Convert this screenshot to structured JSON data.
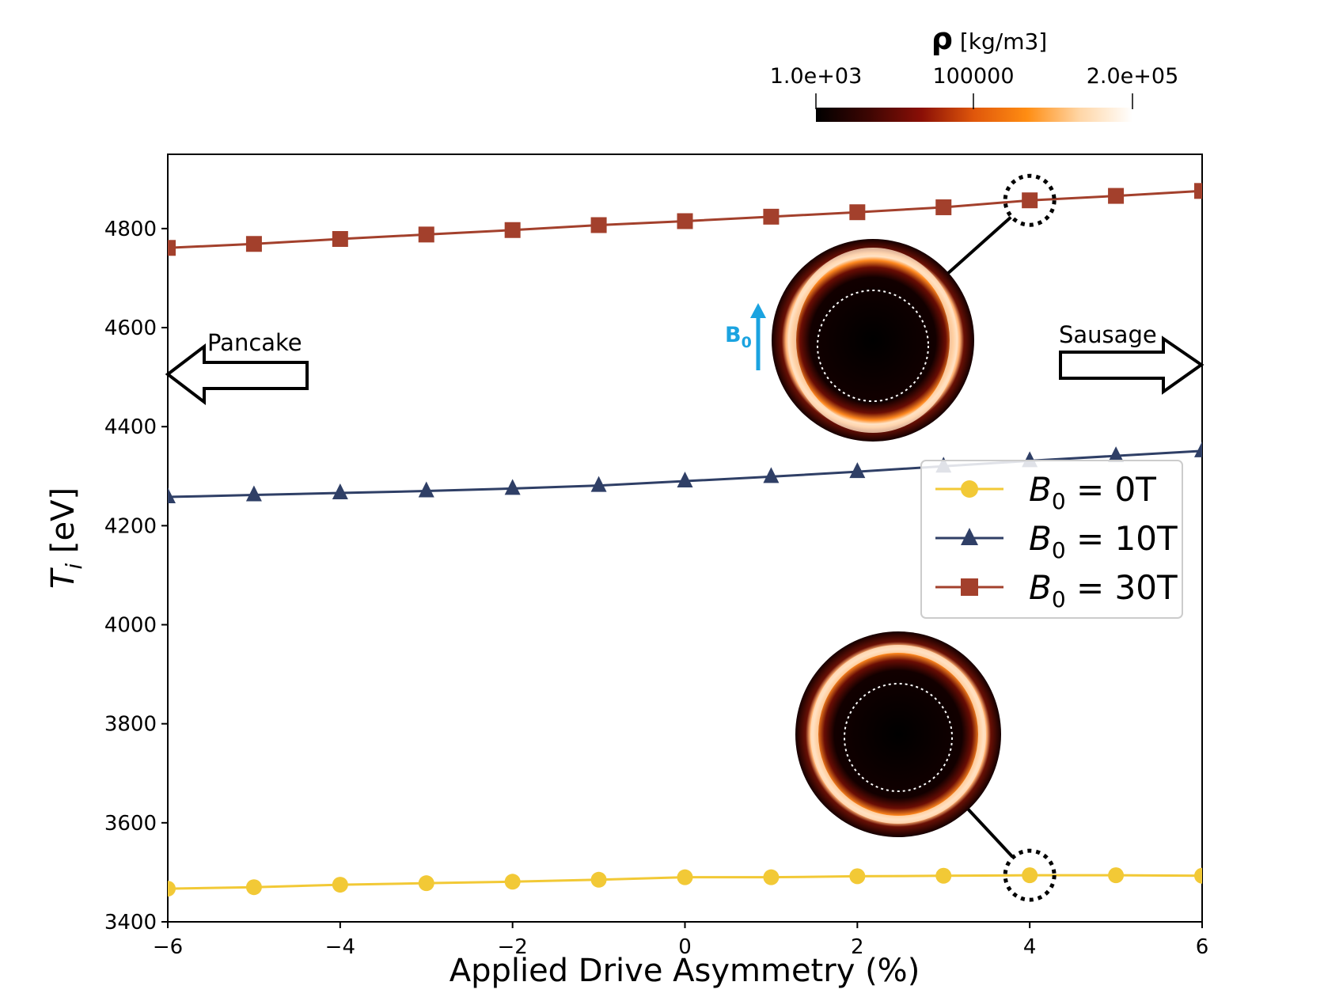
{
  "chart_data": {
    "type": "line",
    "xlabel": "Applied Drive Asymmetry (%)",
    "ylabel_symbol": "T",
    "ylabel_subscript": "i",
    "ylabel_unit": " [eV]",
    "xlim": [
      -6,
      6
    ],
    "ylim": [
      3400,
      4950
    ],
    "x_ticks": [
      -6,
      -4,
      -2,
      0,
      2,
      4,
      6
    ],
    "x_tick_labels": [
      "−6",
      "−4",
      "−2",
      "0",
      "2",
      "4",
      "6"
    ],
    "y_ticks": [
      3400,
      3600,
      3800,
      4000,
      4200,
      4400,
      4600,
      4800
    ],
    "y_tick_labels": [
      "3400",
      "3600",
      "3800",
      "4000",
      "4200",
      "4400",
      "4600",
      "4800"
    ],
    "grid": false,
    "legend_position": "middle-right",
    "x": [
      -6,
      -5,
      -4,
      -3,
      -2,
      -1,
      0,
      1,
      2,
      3,
      4,
      5,
      6
    ],
    "series": [
      {
        "name_prefix": "B",
        "name_subscript": "0",
        "name_suffix": " = 0T",
        "color": "#f2c936",
        "marker": "circle",
        "values": [
          3467,
          3470,
          3475,
          3478,
          3481,
          3485,
          3490,
          3490,
          3492,
          3493,
          3494,
          3494,
          3493
        ]
      },
      {
        "name_prefix": "B",
        "name_subscript": "0",
        "name_suffix": " = 10T",
        "color": "#2f3f66",
        "marker": "triangle",
        "values": [
          4258,
          4262,
          4266,
          4270,
          4275,
          4281,
          4290,
          4299,
          4309,
          4320,
          4331,
          4341,
          4351
        ]
      },
      {
        "name_prefix": "B",
        "name_subscript": "0",
        "name_suffix": " = 30T",
        "color": "#a3402c",
        "marker": "square",
        "values": [
          4761,
          4769,
          4779,
          4788,
          4797,
          4807,
          4815,
          4824,
          4833,
          4843,
          4857,
          4866,
          4876
        ]
      }
    ],
    "highlighted_points": [
      {
        "series": 2,
        "x": 4,
        "y": 4857
      },
      {
        "series": 0,
        "x": 4,
        "y": 3494
      }
    ],
    "colorbar": {
      "title_symbol": "ρ",
      "title_unit": " [kg/m3]",
      "tick_labels": [
        "1.0e+03",
        "100000",
        "2.0e+05"
      ],
      "tick_values": [
        1000,
        100000,
        200000
      ],
      "range": [
        1000,
        200000
      ],
      "colors": [
        "#000000",
        "#3d0603",
        "#8a0f06",
        "#e0570b",
        "#ff8d12",
        "#ffd6a6",
        "#ffffff"
      ]
    },
    "annotations": {
      "left_arrow_label": "Pancake",
      "right_arrow_label": "Sausage",
      "field_label_symbol": "B",
      "field_label_subscript": "0",
      "field_color": "#1ba3e0"
    }
  }
}
